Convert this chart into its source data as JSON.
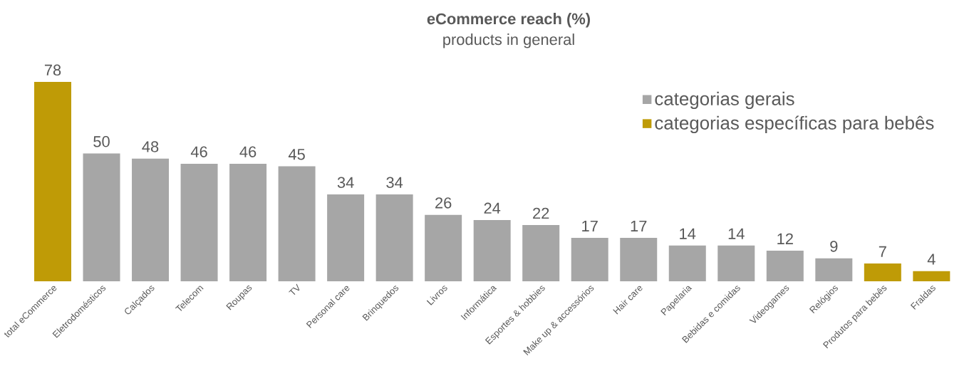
{
  "chart_data": {
    "type": "bar",
    "title": "eCommerce reach (%)",
    "subtitle": "products in general",
    "categories": [
      "total eCommerce",
      "Eletrodomésticos",
      "Calçados",
      "Telecom",
      "Roupas",
      "TV",
      "Personal care",
      "Brinquedos",
      "Livros",
      "Informática",
      "Esportes & hobbies",
      "Make up & accessórios",
      "Hair care",
      "Papelaria",
      "Bebidas e comidas",
      "Videogames",
      "Relógios",
      "Produtos para bebês",
      "Fraldas"
    ],
    "series": [
      {
        "name": "categorias gerais",
        "color": "#a6a6a6",
        "values": [
          null,
          50,
          48,
          46,
          46,
          45,
          34,
          34,
          26,
          24,
          22,
          17,
          17,
          14,
          14,
          12,
          9,
          null,
          null
        ]
      },
      {
        "name": "categorias específicas para bebês",
        "color": "#bf9b06",
        "values": [
          78,
          null,
          null,
          null,
          null,
          null,
          null,
          null,
          null,
          null,
          null,
          null,
          null,
          null,
          null,
          null,
          null,
          7,
          4
        ]
      }
    ],
    "data_labels": true,
    "legend": "top right"
  }
}
